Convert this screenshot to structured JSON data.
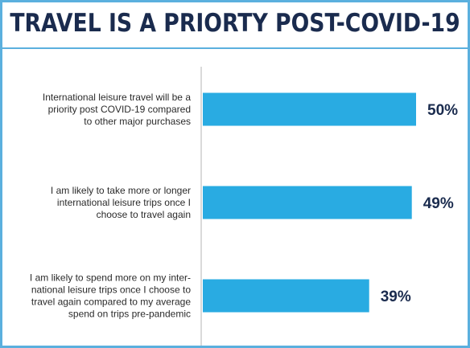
{
  "chart_data": {
    "type": "bar",
    "orientation": "horizontal",
    "title": "TRAVEL IS A PRIORTY POST-COVID-19",
    "categories": [
      [
        "International leisure travel will be a",
        "priority post COVID-19 compared",
        "to other major purchases"
      ],
      [
        "I am likely to take more or longer",
        "international leisure trips once I",
        "choose to travel again"
      ],
      [
        "I am likely to spend more on my inter-",
        "national leisure trips once I choose to",
        "travel again compared to my average",
        "spend on trips pre-pandemic"
      ]
    ],
    "values": [
      50,
      49,
      39
    ],
    "value_labels": [
      "50%",
      "49%",
      "39%"
    ],
    "unit": "%",
    "xlim": [
      0,
      100
    ],
    "bar_color": "#29abe2",
    "axis_color": "#b5b5b5",
    "grid": false,
    "legend": "none"
  }
}
